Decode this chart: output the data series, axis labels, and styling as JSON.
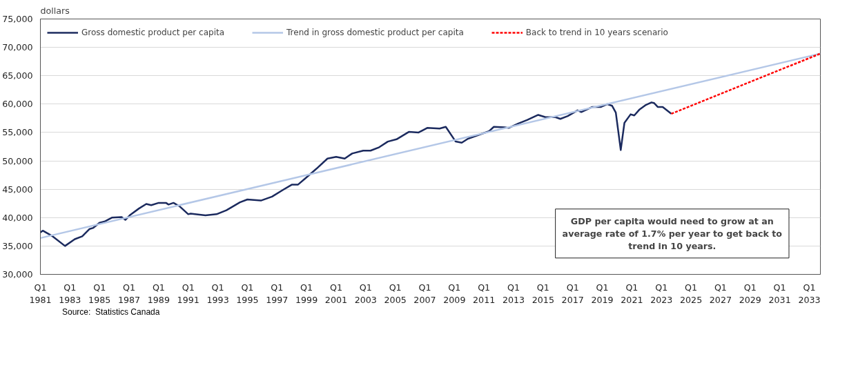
{
  "chart_data": {
    "type": "line",
    "ylabel": "dollars",
    "xlim": [
      "1981-01",
      "2033-10"
    ],
    "ylim": [
      30000,
      75000
    ],
    "xticks": [
      {
        "value": "1981-01",
        "label": "Q1\n1981"
      },
      {
        "value": "1983-01",
        "label": "Q1\n1983"
      },
      {
        "value": "1985-01",
        "label": "Q1\n1985"
      },
      {
        "value": "1987-01",
        "label": "Q1\n1987"
      },
      {
        "value": "1989-01",
        "label": "Q1\n1989"
      },
      {
        "value": "1991-01",
        "label": "Q1\n1991"
      },
      {
        "value": "1993-01",
        "label": "Q1\n1993"
      },
      {
        "value": "1995-01",
        "label": "Q1\n1995"
      },
      {
        "value": "1997-01",
        "label": "Q1\n1997"
      },
      {
        "value": "1999-01",
        "label": "Q1\n1999"
      },
      {
        "value": "2001-01",
        "label": "Q1\n2001"
      },
      {
        "value": "2003-01",
        "label": "Q1\n2003"
      },
      {
        "value": "2005-01",
        "label": "Q1\n2005"
      },
      {
        "value": "2007-01",
        "label": "Q1\n2007"
      },
      {
        "value": "2009-01",
        "label": "Q1\n2009"
      },
      {
        "value": "2011-01",
        "label": "Q1\n2011"
      },
      {
        "value": "2013-01",
        "label": "Q1\n2013"
      },
      {
        "value": "2015-01",
        "label": "Q1\n2015"
      },
      {
        "value": "2017-01",
        "label": "Q1\n2017"
      },
      {
        "value": "2019-01",
        "label": "Q1\n2019"
      },
      {
        "value": "2021-01",
        "label": "Q1\n2021"
      },
      {
        "value": "2023-01",
        "label": "Q1\n2023"
      },
      {
        "value": "2025-01",
        "label": "Q1\n2025"
      },
      {
        "value": "2027-01",
        "label": "Q1\n2027"
      },
      {
        "value": "2029-01",
        "label": "Q1\n2029"
      },
      {
        "value": "2031-01",
        "label": "Q1\n2031"
      },
      {
        "value": "2033-01",
        "label": "Q1\n2033"
      }
    ],
    "yticks": [
      {
        "value": 30000,
        "label": "30,000"
      },
      {
        "value": 35000,
        "label": "35,000"
      },
      {
        "value": 40000,
        "label": "40,000"
      },
      {
        "value": 45000,
        "label": "45,000"
      },
      {
        "value": 50000,
        "label": "50,000"
      },
      {
        "value": 55000,
        "label": "55,000"
      },
      {
        "value": 60000,
        "label": "60,000"
      },
      {
        "value": 65000,
        "label": "65,000"
      },
      {
        "value": 70000,
        "label": "70,000"
      },
      {
        "value": 75000,
        "label": "75,000"
      }
    ],
    "grid": "y",
    "legend": "top left",
    "series": [
      {
        "name": "Gross domestic product per capita",
        "color": "#1b2a5e",
        "line_style": "solid",
        "x": [
          "1981-01",
          "1981-03",
          "1981-11",
          "1982-09",
          "1983-05",
          "1983-11",
          "1984-05",
          "1984-08",
          "1985-01",
          "1985-05",
          "1985-11",
          "1986-07",
          "1986-10",
          "1987-02",
          "1987-09",
          "1988-03",
          "1988-07",
          "1989-01",
          "1989-07",
          "1989-09",
          "1990-01",
          "1990-06",
          "1991-01",
          "1991-03",
          "1992-03",
          "1992-12",
          "1993-08",
          "1994-07",
          "1995-01",
          "1995-12",
          "1996-09",
          "1997-06",
          "1998-01",
          "1998-06",
          "1998-12",
          "1999-09",
          "2000-06",
          "2001-01",
          "2001-08",
          "2002-02",
          "2002-11",
          "2003-05",
          "2003-12",
          "2004-07",
          "2005-02",
          "2005-12",
          "2006-08",
          "2007-03",
          "2008-01",
          "2008-06",
          "2009-02",
          "2009-07",
          "2009-12",
          "2010-09",
          "2011-05",
          "2011-09",
          "2012-06",
          "2012-09",
          "2013-05",
          "2013-12",
          "2014-09",
          "2015-03",
          "2015-11",
          "2016-03",
          "2016-09",
          "2017-05",
          "2017-08",
          "2018-05",
          "2018-12",
          "2019-05",
          "2019-09",
          "2019-12",
          "2020-04",
          "2020-07",
          "2020-12",
          "2021-03",
          "2021-07",
          "2021-12",
          "2022-05",
          "2022-07",
          "2022-10",
          "2023-02",
          "2023-09"
        ],
        "values": [
          37400,
          37700,
          36700,
          35000,
          36200,
          36700,
          38000,
          38200,
          39100,
          39300,
          40000,
          40100,
          39600,
          40500,
          41600,
          42400,
          42200,
          42600,
          42600,
          42300,
          42600,
          42000,
          40600,
          40700,
          40400,
          40600,
          41300,
          42700,
          43200,
          43000,
          43700,
          44900,
          45800,
          45800,
          46900,
          48600,
          50400,
          50700,
          50400,
          51300,
          51800,
          51800,
          52400,
          53400,
          53800,
          55100,
          55000,
          55800,
          55700,
          56000,
          53400,
          53200,
          53900,
          54600,
          55200,
          56000,
          55900,
          55800,
          56600,
          57200,
          58100,
          57700,
          57700,
          57400,
          57900,
          58900,
          58600,
          59500,
          59500,
          60000,
          59700,
          58500,
          51900,
          56700,
          58200,
          58000,
          59000,
          59800,
          60300,
          60200,
          59500,
          59500,
          58300
        ]
      },
      {
        "name": "Trend in gross domestic product per capita",
        "color": "#b4c7e7",
        "line_style": "solid",
        "x": [
          "1981-01",
          "2033-10"
        ],
        "values": [
          36400,
          68900
        ]
      },
      {
        "name": "Back to trend in 10 years scenario",
        "color": "#ff0000",
        "line_style": "dashed",
        "x": [
          "2023-09",
          "2033-10"
        ],
        "values": [
          58300,
          68900
        ]
      }
    ],
    "annotations": [
      "GDP per capita would need to grow at an average rate of 1.7% per year to get back to trend in 10 years.",
      "Source:  Statistics Canada"
    ]
  }
}
